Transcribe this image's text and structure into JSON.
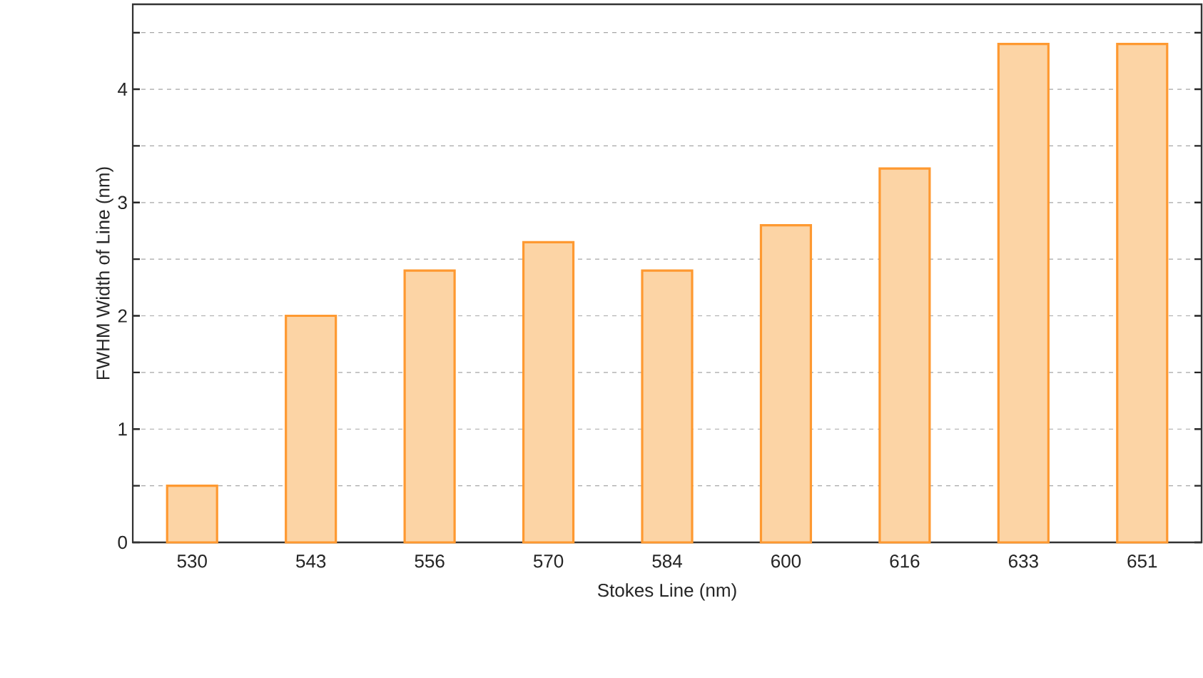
{
  "chart_data": {
    "type": "bar",
    "xlabel": "Stokes Line (nm)",
    "ylabel": "FWHM Width of Line (nm)",
    "categories": [
      "530",
      "543",
      "556",
      "570",
      "584",
      "600",
      "616",
      "633",
      "651"
    ],
    "series": [
      {
        "color": "#fcd4a5",
        "values": [
          0.5,
          2.0,
          2.4,
          2.65,
          2.4,
          2.8,
          3.3,
          4.4,
          4.4
        ]
      }
    ],
    "ylim": [
      0,
      4.75
    ],
    "yticks": [
      0,
      {
        "value": 0.5,
        "label": null
      },
      1,
      {
        "value": 1.5,
        "label": null
      },
      2,
      {
        "value": 2.5,
        "label": null
      },
      3,
      {
        "value": 3.5,
        "label": null
      },
      4,
      {
        "value": 4.5,
        "label": null
      }
    ],
    "grid": "y"
  }
}
